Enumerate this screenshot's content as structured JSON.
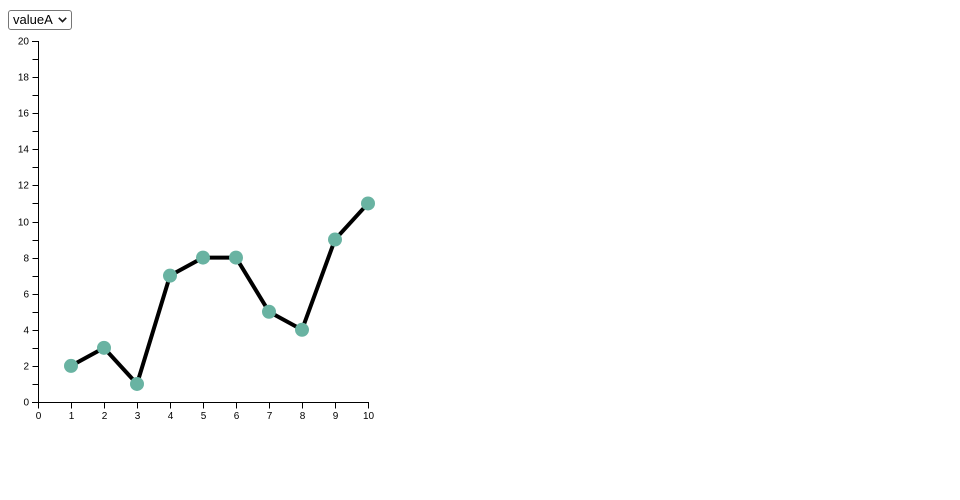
{
  "controls": {
    "group_select": {
      "selected": "valueA",
      "options": [
        "valueA"
      ]
    }
  },
  "chart_data": {
    "type": "line",
    "subtype": "connected-scatter",
    "series": [
      {
        "name": "valueA",
        "x": [
          1,
          2,
          3,
          4,
          5,
          6,
          7,
          8,
          9,
          10
        ],
        "y": [
          2,
          3,
          1,
          7,
          8,
          8,
          5,
          4,
          9,
          11
        ]
      }
    ],
    "title": "",
    "xlabel": "",
    "ylabel": "",
    "x_domain": [
      0,
      10
    ],
    "y_domain": [
      0,
      20
    ],
    "x_ticks": [
      0,
      1,
      2,
      3,
      4,
      5,
      6,
      7,
      8,
      9,
      10
    ],
    "y_ticks_labeled": [
      0,
      2,
      4,
      6,
      8,
      10,
      12,
      14,
      16,
      18,
      20
    ],
    "y_tick_minor_step": 1,
    "grid": false,
    "legend_position": "none",
    "colors": {
      "line": "#000000",
      "point": "#69b3a2",
      "axis": "#000000",
      "tick_text": "#000000"
    }
  }
}
